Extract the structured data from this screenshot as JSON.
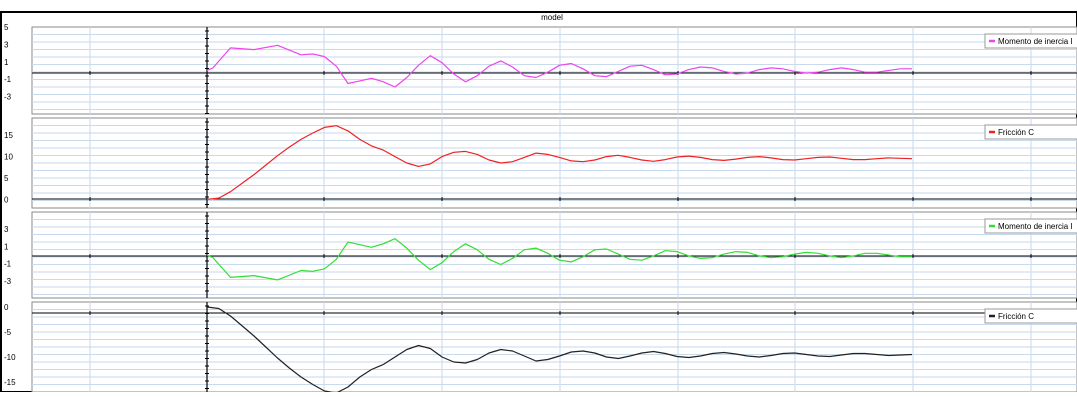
{
  "window": {
    "title": "model"
  },
  "colors": {
    "frame": "#000000",
    "grid": "#c7daee",
    "plot_bg": "#ffffff",
    "axis": "#000000"
  },
  "chart_data": [
    {
      "type": "line",
      "title": "",
      "xlabel": "",
      "ylabel": "",
      "ylim": [
        -5,
        5
      ],
      "y_tick_labels": [
        "5",
        "3",
        "1",
        "-1",
        "-3"
      ],
      "y_tick_values": [
        5,
        3,
        1,
        -1,
        -3
      ],
      "grid": true,
      "legend_position": "top-right",
      "series": [
        {
          "name": "Momento de inercia I",
          "color": "#ee44ee",
          "x": [
            0,
            0.05,
            0.2,
            0.4,
            0.6,
            0.8,
            0.9,
            1.0,
            1.1,
            1.2,
            1.3,
            1.4,
            1.5,
            1.6,
            1.7,
            1.8,
            1.9,
            2.0,
            2.1,
            2.2,
            2.3,
            2.4,
            2.5,
            2.6,
            2.7,
            2.8,
            2.9,
            3.0,
            3.1,
            3.2,
            3.3,
            3.4,
            3.5,
            3.6,
            3.7,
            3.8,
            3.9,
            4.0,
            4.1,
            4.2,
            4.3,
            4.4,
            4.5,
            4.6,
            4.7,
            4.8,
            4.9,
            5.0,
            5.1,
            5.2,
            5.3,
            5.4,
            5.5,
            5.6,
            5.7,
            5.8,
            5.9,
            6.0
          ],
          "y": [
            0,
            0.3,
            2.6,
            2.4,
            2.9,
            1.8,
            1.9,
            1.6,
            0.5,
            -1.5,
            -1.2,
            -0.9,
            -1.3,
            -1.9,
            -0.8,
            0.6,
            1.7,
            0.9,
            -0.4,
            -1.3,
            -0.6,
            0.5,
            1.1,
            0.4,
            -0.6,
            -0.8,
            -0.2,
            0.6,
            0.8,
            0.2,
            -0.6,
            -0.7,
            -0.1,
            0.5,
            0.6,
            0.1,
            -0.5,
            -0.4,
            0.1,
            0.4,
            0.3,
            -0.1,
            -0.4,
            -0.3,
            0.1,
            0.3,
            0.2,
            -0.1,
            -0.3,
            -0.2,
            0.1,
            0.3,
            0.1,
            -0.2,
            -0.2,
            0.0,
            0.2,
            0.2
          ]
        }
      ]
    },
    {
      "type": "line",
      "title": "",
      "xlabel": "",
      "ylabel": "",
      "ylim": [
        -2,
        19
      ],
      "y_tick_labels": [
        "15",
        "10",
        "5",
        "0"
      ],
      "y_tick_values": [
        15,
        10,
        5,
        0
      ],
      "grid": true,
      "legend_position": "top-right",
      "series": [
        {
          "name": "Fricción C",
          "color": "#ee2222",
          "x": [
            0,
            0.1,
            0.2,
            0.3,
            0.4,
            0.5,
            0.6,
            0.7,
            0.8,
            0.9,
            1.0,
            1.1,
            1.2,
            1.3,
            1.4,
            1.5,
            1.6,
            1.7,
            1.8,
            1.9,
            2.0,
            2.1,
            2.2,
            2.3,
            2.4,
            2.5,
            2.6,
            2.7,
            2.8,
            2.9,
            3.0,
            3.1,
            3.2,
            3.3,
            3.4,
            3.5,
            3.6,
            3.7,
            3.8,
            3.9,
            4.0,
            4.1,
            4.2,
            4.3,
            4.4,
            4.5,
            4.6,
            4.7,
            4.8,
            4.9,
            5.0,
            5.1,
            5.2,
            5.3,
            5.4,
            5.5,
            5.6,
            5.7,
            5.8,
            5.9,
            6.0
          ],
          "y": [
            0,
            0.3,
            1.8,
            3.8,
            5.8,
            8.0,
            10.2,
            12.2,
            14.0,
            15.5,
            16.8,
            17.2,
            16.0,
            14.0,
            12.5,
            11.5,
            10.0,
            8.5,
            7.7,
            8.3,
            10.0,
            11.0,
            11.2,
            10.5,
            9.2,
            8.5,
            8.8,
            9.8,
            10.8,
            10.5,
            9.8,
            9.0,
            8.8,
            9.2,
            10.0,
            10.3,
            9.8,
            9.2,
            8.9,
            9.3,
            9.9,
            10.1,
            9.8,
            9.3,
            9.1,
            9.4,
            9.8,
            10.0,
            9.7,
            9.3,
            9.2,
            9.5,
            9.8,
            9.9,
            9.6,
            9.3,
            9.3,
            9.5,
            9.7,
            9.6,
            9.5
          ]
        }
      ]
    },
    {
      "type": "line",
      "title": "",
      "xlabel": "",
      "ylabel": "",
      "ylim": [
        -5,
        5
      ],
      "y_tick_labels": [
        "3",
        "1",
        "-1",
        "-3"
      ],
      "y_tick_values": [
        3,
        1,
        -1,
        -3
      ],
      "grid": true,
      "legend_position": "top-right",
      "series": [
        {
          "name": "Momento de inercia I",
          "color": "#33dd33",
          "x": [
            0,
            0.05,
            0.2,
            0.4,
            0.6,
            0.8,
            0.9,
            1.0,
            1.1,
            1.2,
            1.3,
            1.4,
            1.5,
            1.6,
            1.7,
            1.8,
            1.9,
            2.0,
            2.1,
            2.2,
            2.3,
            2.4,
            2.5,
            2.6,
            2.7,
            2.8,
            2.9,
            3.0,
            3.1,
            3.2,
            3.3,
            3.4,
            3.5,
            3.6,
            3.7,
            3.8,
            3.9,
            4.0,
            4.1,
            4.2,
            4.3,
            4.4,
            4.5,
            4.6,
            4.7,
            4.8,
            4.9,
            5.0,
            5.1,
            5.2,
            5.3,
            5.4,
            5.5,
            5.6,
            5.7,
            5.8,
            5.9,
            6.0
          ],
          "y": [
            0,
            -0.3,
            -2.6,
            -2.4,
            -2.9,
            -1.8,
            -1.9,
            -1.6,
            -0.5,
            1.5,
            1.2,
            0.9,
            1.3,
            1.9,
            0.8,
            -0.6,
            -1.7,
            -0.9,
            0.4,
            1.3,
            0.6,
            -0.5,
            -1.1,
            -0.4,
            0.6,
            0.8,
            0.2,
            -0.6,
            -0.8,
            -0.2,
            0.6,
            0.7,
            0.1,
            -0.5,
            -0.6,
            -0.1,
            0.5,
            0.4,
            -0.1,
            -0.4,
            -0.3,
            0.1,
            0.4,
            0.3,
            -0.1,
            -0.3,
            -0.2,
            0.1,
            0.3,
            0.2,
            -0.1,
            -0.3,
            -0.1,
            0.2,
            0.2,
            0.0,
            -0.2,
            -0.2
          ]
        }
      ]
    },
    {
      "type": "line",
      "title": "",
      "xlabel": "",
      "ylabel": "",
      "ylim": [
        -17,
        1
      ],
      "y_tick_labels": [
        "0",
        "-5",
        "-10",
        "-15"
      ],
      "y_tick_values": [
        0,
        -5,
        -10,
        -15
      ],
      "grid": true,
      "legend_position": "top-right",
      "series": [
        {
          "name": "Fricción C",
          "color": "#222222",
          "x": [
            0,
            0.1,
            0.2,
            0.3,
            0.4,
            0.5,
            0.6,
            0.7,
            0.8,
            0.9,
            1.0,
            1.1,
            1.2,
            1.3,
            1.4,
            1.5,
            1.6,
            1.7,
            1.8,
            1.9,
            2.0,
            2.1,
            2.2,
            2.3,
            2.4,
            2.5,
            2.6,
            2.7,
            2.8,
            2.9,
            3.0,
            3.1,
            3.2,
            3.3,
            3.4,
            3.5,
            3.6,
            3.7,
            3.8,
            3.9,
            4.0,
            4.1,
            4.2,
            4.3,
            4.4,
            4.5,
            4.6,
            4.7,
            4.8,
            4.9,
            5.0,
            5.1,
            5.2,
            5.3,
            5.4,
            5.5,
            5.6,
            5.7,
            5.8,
            5.9,
            6.0
          ],
          "y": [
            0,
            -0.3,
            -1.8,
            -3.8,
            -5.8,
            -8.0,
            -10.2,
            -12.2,
            -14.0,
            -15.5,
            -16.8,
            -17.2,
            -16.0,
            -14.0,
            -12.5,
            -11.5,
            -10.0,
            -8.5,
            -7.7,
            -8.3,
            -10.0,
            -11.0,
            -11.2,
            -10.5,
            -9.2,
            -8.5,
            -8.8,
            -9.8,
            -10.8,
            -10.5,
            -9.8,
            -9.0,
            -8.8,
            -9.2,
            -10.0,
            -10.3,
            -9.8,
            -9.2,
            -8.9,
            -9.3,
            -9.9,
            -10.1,
            -9.8,
            -9.3,
            -9.1,
            -9.4,
            -9.8,
            -10.0,
            -9.7,
            -9.3,
            -9.2,
            -9.5,
            -9.8,
            -9.9,
            -9.6,
            -9.3,
            -9.3,
            -9.5,
            -9.7,
            -9.6,
            -9.5
          ]
        }
      ]
    }
  ]
}
